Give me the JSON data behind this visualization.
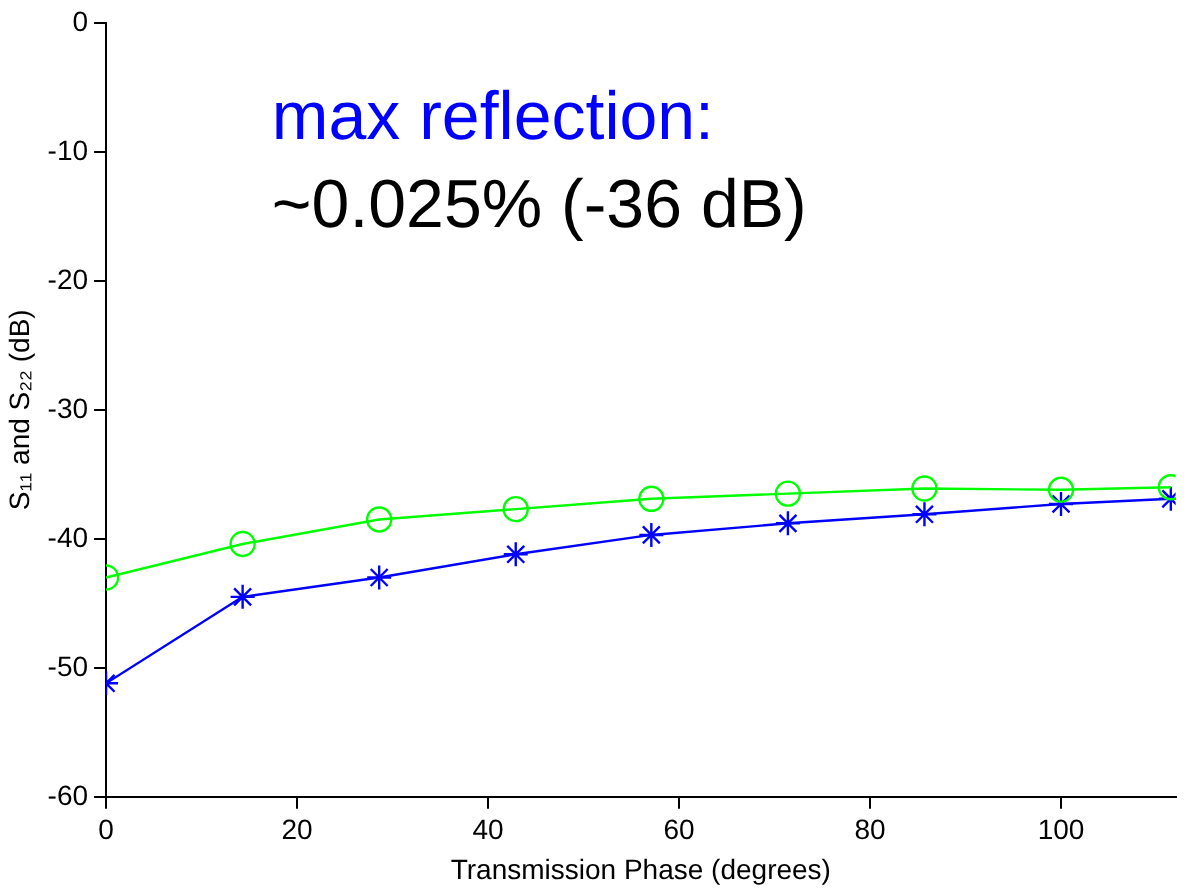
{
  "chart_data": {
    "type": "line",
    "xlabel": "Transmission Phase (degrees)",
    "ylabel": "S₁₁ and S₂₂ (dB)",
    "annotations": [
      "max reflection:",
      "~0.025% (-36 dB)"
    ],
    "series": [
      {
        "color": "#00ff00",
        "marker": "circle",
        "x": [
          0,
          14.3,
          28.6,
          42.9,
          57.1,
          71.4,
          85.7,
          100,
          111.5
        ],
        "values": [
          -43,
          -40.4,
          -38.5,
          -37.7,
          -36.9,
          -36.5,
          -36.1,
          -36.2,
          -36
        ]
      },
      {
        "color": "#0000ff",
        "marker": "cross",
        "x": [
          0,
          14.3,
          28.6,
          42.9,
          57.1,
          71.4,
          85.7,
          100,
          111.5
        ],
        "values": [
          -51.2,
          -44.5,
          -43,
          -41.2,
          -39.7,
          -38.8,
          -38.1,
          -37.3,
          -36.9
        ]
      }
    ],
    "xlim": [
      0,
      112
    ],
    "xticks": [
      0,
      20,
      40,
      60,
      80,
      100
    ],
    "ylim": [
      -60,
      0
    ],
    "yticks": [
      -60,
      -50,
      -40,
      -30,
      -20,
      -10,
      0
    ],
    "grid": false,
    "legend": false,
    "line_style": "solid"
  }
}
